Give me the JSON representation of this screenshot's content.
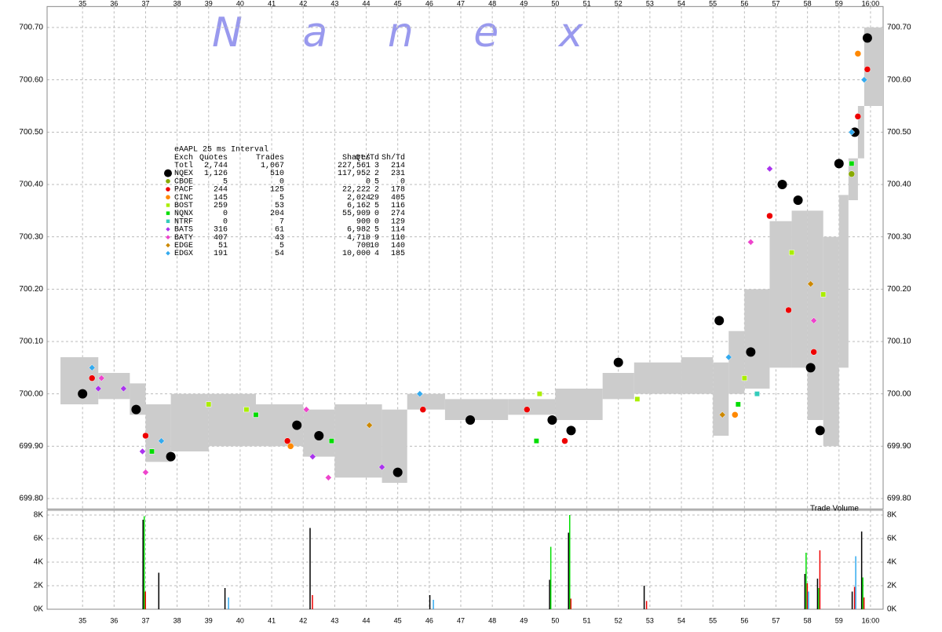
{
  "watermark": "N a n e x",
  "chart_data": [
    {
      "type": "scatter",
      "xlim": [
        33.875,
        60.4
      ],
      "xticks": [
        35,
        36,
        37,
        38,
        39,
        40,
        41,
        42,
        43,
        44,
        45,
        46,
        47,
        48,
        49,
        50,
        51,
        52,
        53,
        54,
        55,
        56,
        57,
        58,
        59,
        {
          "value": 60,
          "label": "16:00"
        }
      ],
      "ylim": [
        699.78,
        700.74
      ],
      "yticks": [
        {
          "value": 699.8,
          "label": "699.80"
        },
        {
          "value": 699.9,
          "label": "699.90"
        },
        {
          "value": 700.0,
          "label": "700.00"
        },
        {
          "value": 700.1,
          "label": "700.10"
        },
        {
          "value": 700.2,
          "label": "700.20"
        },
        {
          "value": 700.3,
          "label": "700.30"
        },
        {
          "value": 700.4,
          "label": "700.40"
        },
        {
          "value": 700.5,
          "label": "700.50"
        },
        {
          "value": 700.6,
          "label": "700.60"
        },
        {
          "value": 700.7,
          "label": "700.70"
        }
      ],
      "grid": true,
      "band": {
        "color": "#cccccc",
        "x": [
          34.3,
          35.5,
          36.5,
          37.0,
          37.8,
          39.0,
          40.5,
          42.0,
          43.0,
          44.5,
          45.3,
          46.5,
          48.5,
          50.0,
          51.5,
          52.5,
          54.0,
          55.0,
          55.5,
          56.0,
          56.8,
          57.5,
          58.0,
          58.5,
          59.0,
          59.3,
          59.6,
          59.8,
          60.4
        ],
        "low": [
          699.98,
          699.99,
          699.96,
          699.87,
          699.89,
          699.9,
          699.9,
          699.88,
          699.84,
          699.83,
          699.97,
          699.95,
          699.96,
          699.95,
          699.99,
          700.0,
          700.0,
          699.92,
          700.0,
          700.01,
          700.05,
          700.05,
          699.95,
          699.9,
          700.05,
          700.37,
          700.45,
          700.55,
          700.7
        ],
        "high": [
          700.07,
          700.04,
          700.02,
          699.98,
          700.0,
          700.0,
          699.98,
          699.97,
          699.98,
          699.97,
          700.0,
          699.99,
          699.99,
          700.01,
          700.04,
          700.06,
          700.07,
          700.06,
          700.12,
          700.2,
          700.33,
          700.35,
          700.35,
          700.3,
          700.38,
          700.45,
          700.55,
          700.7,
          700.71
        ]
      },
      "table": {
        "title": "eAAPL 25 ms Interval",
        "columns": [
          "Exch",
          "Quotes",
          "Trades",
          "Shares",
          "Qt/Td",
          "Sh/Td"
        ],
        "totals": [
          "Totl",
          "2,744",
          "1,067",
          "227,561",
          "3",
          "214"
        ]
      },
      "series": [
        {
          "name": "NQEX",
          "color": "#000000",
          "marker": "circle",
          "stats": [
            "1,126",
            "510",
            "117,952",
            "2",
            "231"
          ],
          "x": [
            35.0,
            36.7,
            37.8,
            41.8,
            42.5,
            45.0,
            47.3,
            49.9,
            50.5,
            52.0,
            55.2,
            56.2,
            57.2,
            57.7,
            58.1,
            58.4,
            59.0,
            59.5,
            59.9
          ],
          "values": [
            700.0,
            699.97,
            699.88,
            699.94,
            699.92,
            699.85,
            699.95,
            699.95,
            699.93,
            700.06,
            700.14,
            700.08,
            700.4,
            700.37,
            700.05,
            699.93,
            700.44,
            700.5,
            700.68
          ]
        },
        {
          "name": "CBOE",
          "color": "#88aa00",
          "marker": "circle",
          "stats": [
            "5",
            "0",
            "0",
            "5",
            "0"
          ],
          "x": [
            59.4
          ],
          "values": [
            700.42
          ]
        },
        {
          "name": "PACF",
          "color": "#ee0000",
          "marker": "circle",
          "stats": [
            "244",
            "125",
            "22,222",
            "2",
            "178"
          ],
          "x": [
            35.3,
            37.0,
            41.5,
            45.8,
            49.1,
            50.3,
            56.8,
            57.4,
            58.2,
            59.6,
            59.9
          ],
          "values": [
            700.03,
            699.92,
            699.91,
            699.97,
            699.97,
            699.91,
            700.34,
            700.16,
            700.08,
            700.53,
            700.62
          ]
        },
        {
          "name": "CINC",
          "color": "#ff8800",
          "marker": "circle",
          "stats": [
            "145",
            "5",
            "2,024",
            "29",
            "405"
          ],
          "x": [
            41.6,
            55.7,
            59.6
          ],
          "values": [
            699.9,
            699.96,
            700.65
          ]
        },
        {
          "name": "BOST",
          "color": "#aaee00",
          "marker": "square",
          "stats": [
            "259",
            "53",
            "6,162",
            "5",
            "116"
          ],
          "x": [
            39.0,
            40.2,
            49.5,
            52.6,
            56.0,
            57.5,
            58.5
          ],
          "values": [
            699.98,
            699.97,
            700.0,
            699.99,
            700.03,
            700.27,
            700.19
          ]
        },
        {
          "name": "NQNX",
          "color": "#00dd00",
          "marker": "square",
          "stats": [
            "0",
            "204",
            "55,909",
            "0",
            "274"
          ],
          "x": [
            37.2,
            40.5,
            42.9,
            49.4,
            55.8,
            59.4
          ],
          "values": [
            699.89,
            699.96,
            699.91,
            699.91,
            699.98,
            700.44
          ]
        },
        {
          "name": "NTRF",
          "color": "#33ccbb",
          "marker": "square",
          "stats": [
            "0",
            "7",
            "900",
            "0",
            "129"
          ],
          "x": [
            56.4
          ],
          "values": [
            700.0
          ]
        },
        {
          "name": "BATS",
          "color": "#aa33ee",
          "marker": "diamond",
          "stats": [
            "316",
            "61",
            "6,982",
            "5",
            "114"
          ],
          "x": [
            35.5,
            36.3,
            36.9,
            42.3,
            44.5,
            56.8
          ],
          "values": [
            700.01,
            700.01,
            699.89,
            699.88,
            699.86,
            700.43
          ]
        },
        {
          "name": "BATY",
          "color": "#ee44cc",
          "marker": "diamond",
          "stats": [
            "407",
            "43",
            "4,710",
            "9",
            "110"
          ],
          "x": [
            35.6,
            37.0,
            42.1,
            42.8,
            56.2,
            58.2
          ],
          "values": [
            700.03,
            699.85,
            699.97,
            699.84,
            700.29,
            700.14
          ]
        },
        {
          "name": "EDGE",
          "color": "#cc8800",
          "marker": "diamond",
          "stats": [
            "51",
            "5",
            "700",
            "10",
            "140"
          ],
          "x": [
            44.1,
            55.3,
            58.1
          ],
          "values": [
            699.94,
            699.96,
            700.21
          ]
        },
        {
          "name": "EDGX",
          "color": "#33aaee",
          "marker": "diamond",
          "stats": [
            "191",
            "54",
            "10,000",
            "4",
            "185"
          ],
          "x": [
            35.3,
            37.5,
            45.7,
            55.5,
            59.4,
            59.8
          ],
          "values": [
            700.05,
            699.91,
            700.0,
            700.07,
            700.5,
            700.6
          ]
        }
      ]
    },
    {
      "type": "bar",
      "title": "Trade Volume",
      "xlim": [
        33.875,
        60.4
      ],
      "xticks": [
        35,
        36,
        37,
        38,
        39,
        40,
        41,
        42,
        43,
        44,
        45,
        46,
        47,
        48,
        49,
        50,
        51,
        52,
        53,
        54,
        55,
        56,
        57,
        58,
        59,
        {
          "value": 60,
          "label": "16:00"
        }
      ],
      "ylim": [
        0,
        8400
      ],
      "yticks": [
        {
          "value": 0,
          "label": "0K"
        },
        {
          "value": 2000,
          "label": "2K"
        },
        {
          "value": 4000,
          "label": "4K"
        },
        {
          "value": 6000,
          "label": "6K"
        },
        {
          "value": 8000,
          "label": "8K"
        }
      ],
      "grid": true,
      "x": [
        36.9,
        37.4,
        39.5,
        42.2,
        46.0,
        49.8,
        50.4,
        52.8,
        57.9,
        58.3,
        59.4,
        59.7
      ],
      "series": [
        {
          "color": "#000000",
          "values": [
            7600,
            3100,
            1800,
            6900,
            1200,
            2500,
            6500,
            2000,
            3000,
            2600,
            1500,
            6600
          ]
        },
        {
          "color": "#00dd00",
          "values": [
            7900,
            null,
            null,
            null,
            null,
            5300,
            8000,
            null,
            4800,
            1800,
            null,
            2700
          ]
        },
        {
          "color": "#ee0000",
          "values": [
            1500,
            null,
            null,
            1200,
            null,
            null,
            900,
            700,
            2200,
            5000,
            1900,
            1000
          ]
        },
        {
          "color": "#33aaee",
          "values": [
            null,
            null,
            1000,
            null,
            800,
            null,
            null,
            null,
            1500,
            null,
            4500,
            null
          ]
        }
      ]
    }
  ]
}
